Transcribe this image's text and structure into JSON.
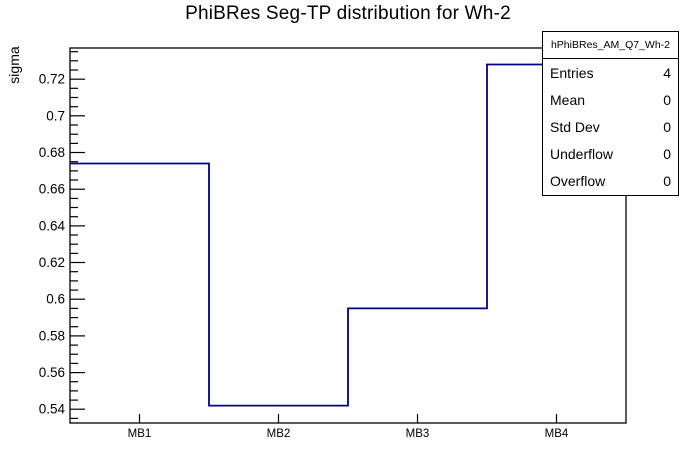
{
  "title": "PhiBRes Seg-TP distribution for Wh-2",
  "y_axis": {
    "label": "sigma"
  },
  "colors": {
    "line": "#00008b",
    "frame": "#000000",
    "text": "#000000",
    "background": "#ffffff"
  },
  "stats": {
    "header": "hPhiBRes_AM_Q7_Wh-2",
    "rows": [
      {
        "label": "Entries",
        "value": "4"
      },
      {
        "label": "Mean",
        "value": "0"
      },
      {
        "label": "Std Dev",
        "value": "0"
      },
      {
        "label": "Underflow",
        "value": "0"
      },
      {
        "label": "Overflow",
        "value": "0"
      }
    ]
  },
  "chart_data": {
    "type": "bar",
    "style": "step-histogram-outline",
    "title": "PhiBRes Seg-TP distribution for Wh-2",
    "xlabel": "",
    "ylabel": "sigma",
    "categories": [
      "MB1",
      "MB2",
      "MB3",
      "MB4"
    ],
    "values": [
      0.674,
      0.542,
      0.595,
      0.728
    ],
    "ylim": [
      0.5325,
      0.737
    ],
    "y_major_step": 0.02,
    "y_minor_step": 0.005,
    "grid": false,
    "legend": false,
    "y_ticks": [
      {
        "value": 0.54,
        "label": "0.54"
      },
      {
        "value": 0.56,
        "label": "0.56"
      },
      {
        "value": 0.58,
        "label": "0.58"
      },
      {
        "value": 0.6,
        "label": "0.6"
      },
      {
        "value": 0.62,
        "label": "0.62"
      },
      {
        "value": 0.64,
        "label": "0.64"
      },
      {
        "value": 0.66,
        "label": "0.66"
      },
      {
        "value": 0.68,
        "label": "0.68"
      },
      {
        "value": 0.7,
        "label": "0.7"
      },
      {
        "value": 0.72,
        "label": "0.72"
      }
    ]
  }
}
